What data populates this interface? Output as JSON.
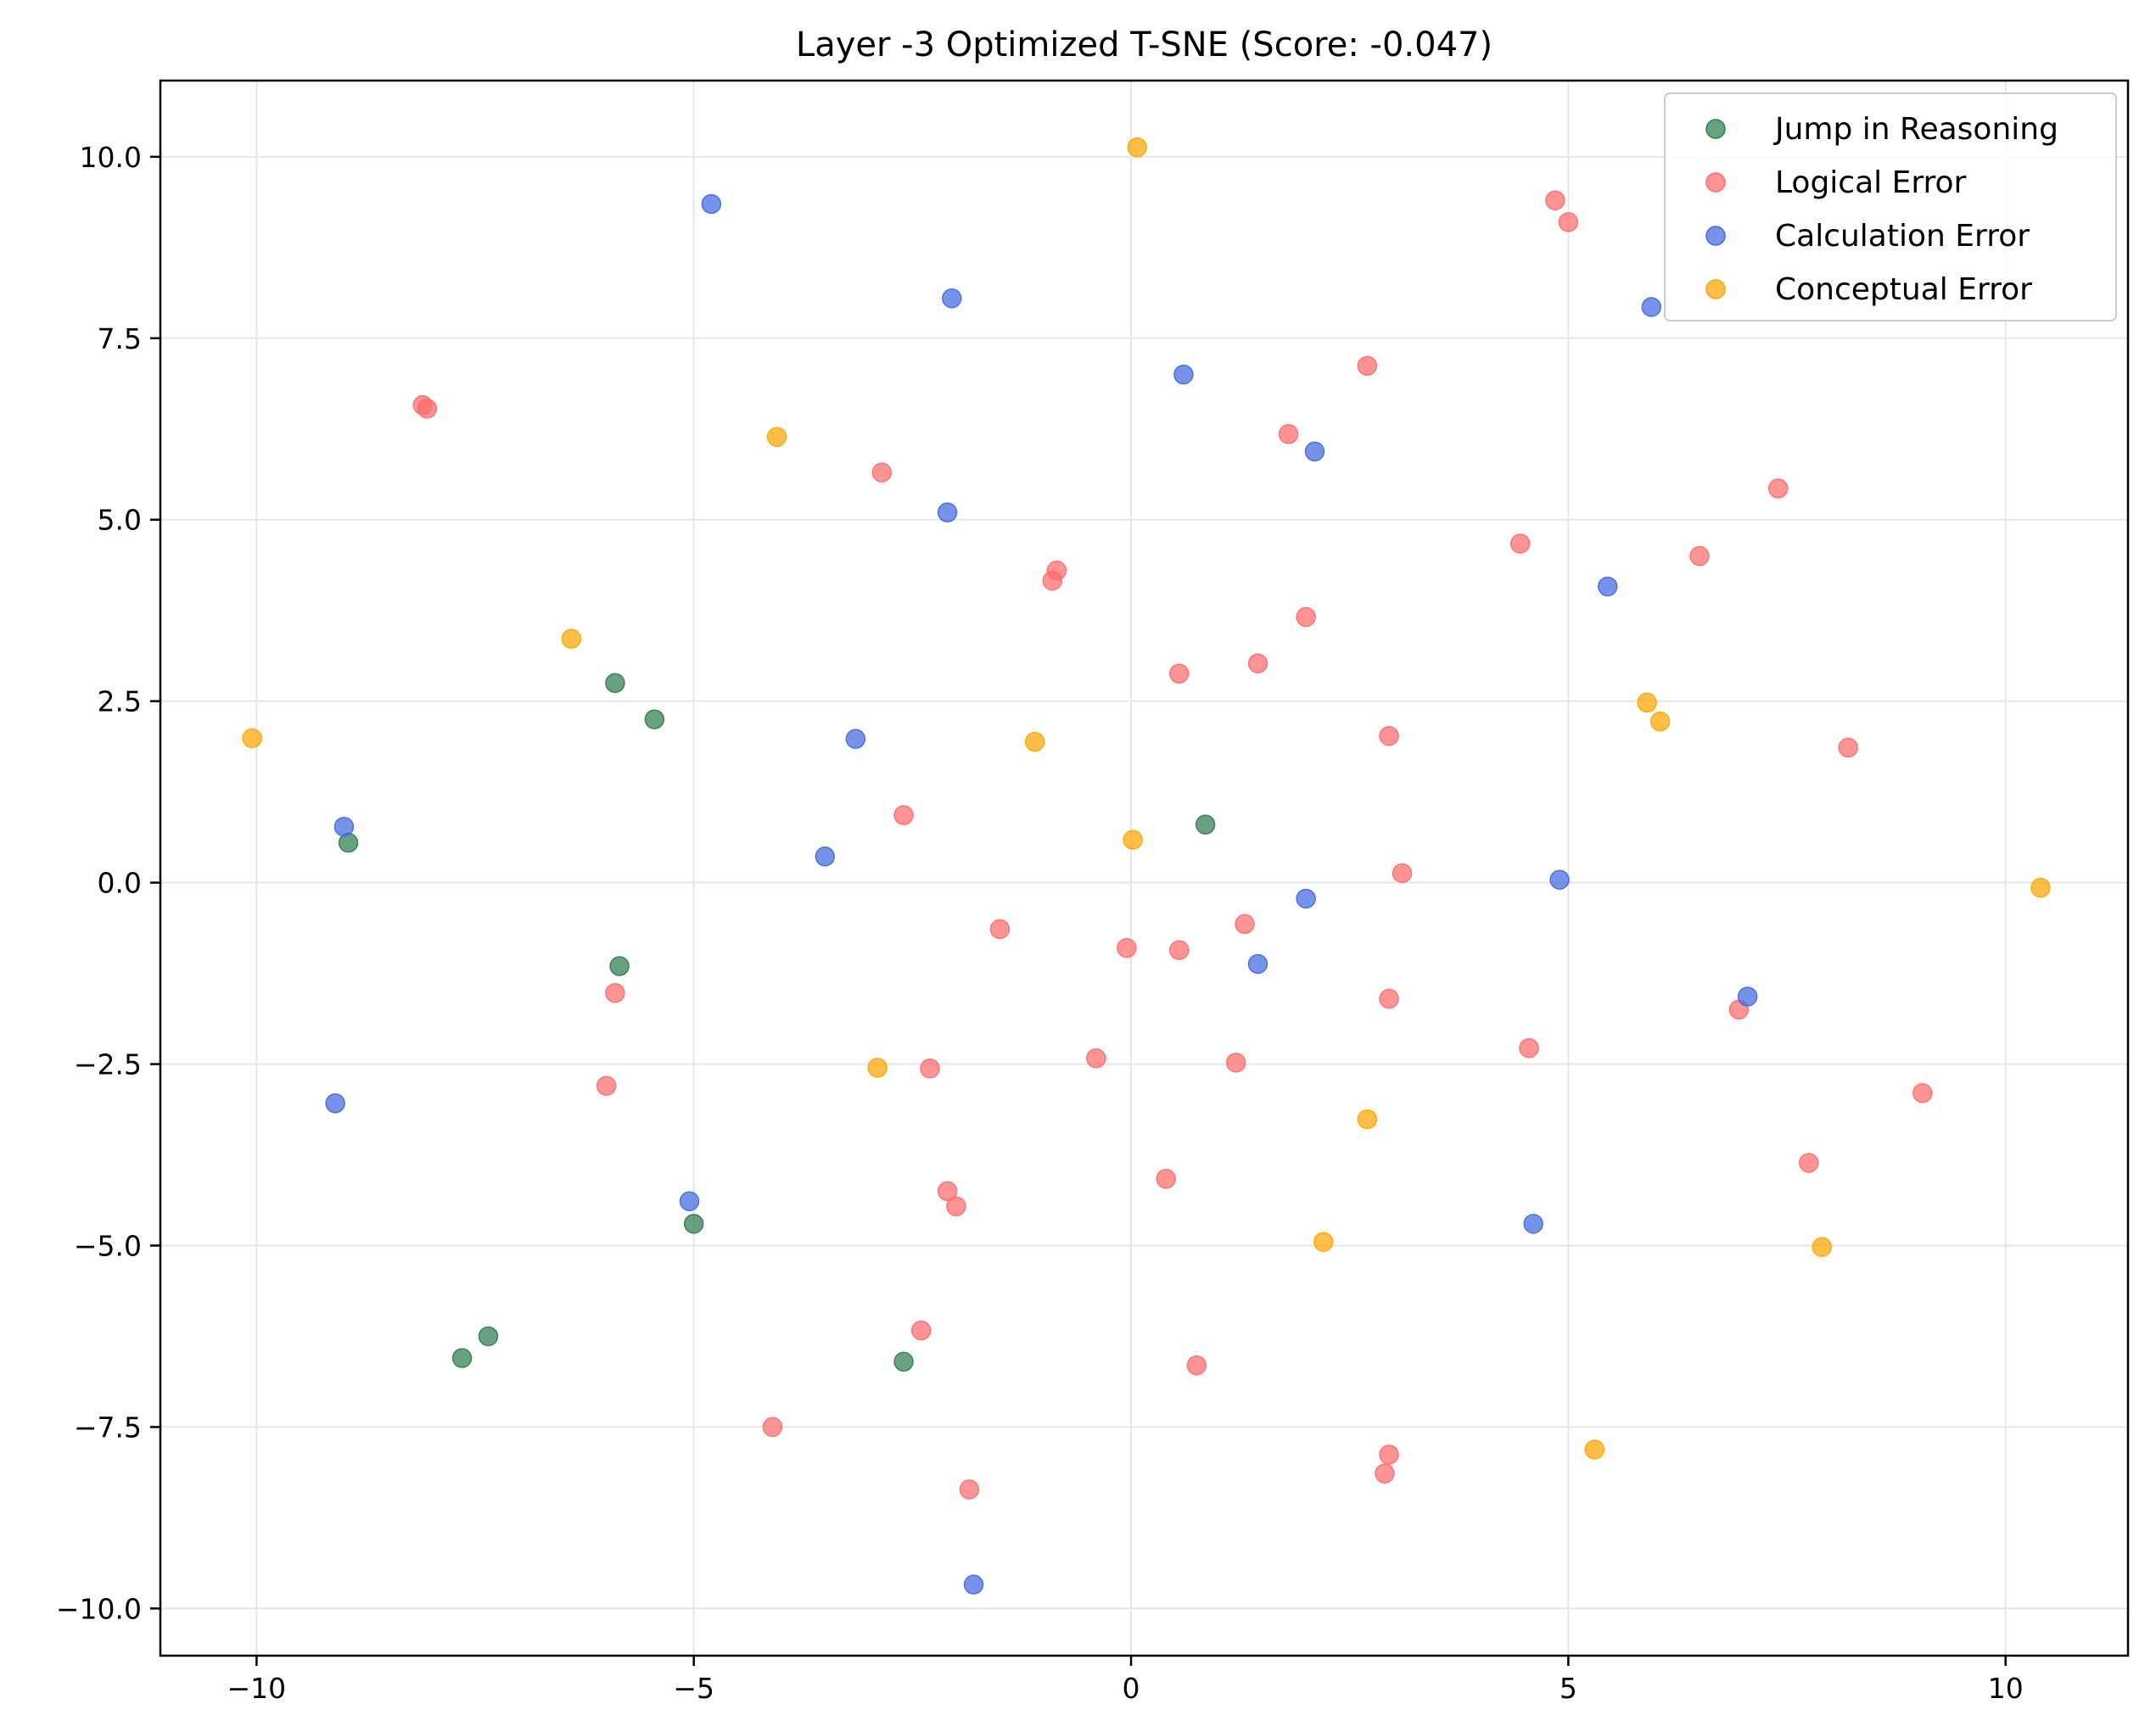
{
  "chart_data": {
    "type": "scatter",
    "title": "Layer -3 Optimized T-SNE (Score: -0.047)",
    "xlabel": "",
    "ylabel": "",
    "xlim": [
      -11.1,
      11.4
    ],
    "ylim": [
      -10.65,
      11.05
    ],
    "xticks": [
      -10,
      -5,
      0,
      5,
      10
    ],
    "xtick_labels": [
      "−10",
      "−5",
      "0",
      "5",
      "10"
    ],
    "yticks": [
      10.0,
      7.5,
      5.0,
      2.5,
      0.0,
      -2.5,
      -5.0,
      -7.5,
      -10.0
    ],
    "ytick_labels": [
      "10.0",
      "7.5",
      "5.0",
      "2.5",
      "0.0",
      "−2.5",
      "−5.0",
      "−7.5",
      "−10.0"
    ],
    "grid": true,
    "legend_position": "top-right",
    "series": [
      {
        "name": "Jump in Reasoning",
        "color": "#2e7d4f",
        "points": [
          [
            -5.9,
            2.75
          ],
          [
            -5.45,
            2.25
          ],
          [
            -8.95,
            0.55
          ],
          [
            -5.85,
            -1.15
          ],
          [
            0.85,
            0.8
          ],
          [
            -5.0,
            -4.7
          ],
          [
            -7.65,
            -6.55
          ],
          [
            -7.35,
            -6.25
          ],
          [
            -2.6,
            -6.6
          ]
        ]
      },
      {
        "name": "Logical Error",
        "color": "#ff6b6b",
        "points": [
          [
            -8.1,
            6.58
          ],
          [
            -8.05,
            6.53
          ],
          [
            4.85,
            9.4
          ],
          [
            5.0,
            9.1
          ],
          [
            2.7,
            7.12
          ],
          [
            1.8,
            6.18
          ],
          [
            -2.85,
            5.65
          ],
          [
            7.4,
            5.43
          ],
          [
            4.45,
            4.67
          ],
          [
            6.5,
            4.5
          ],
          [
            -0.85,
            4.3
          ],
          [
            -0.9,
            4.16
          ],
          [
            2.0,
            3.66
          ],
          [
            1.45,
            3.02
          ],
          [
            0.55,
            2.88
          ],
          [
            2.95,
            2.02
          ],
          [
            8.2,
            1.86
          ],
          [
            -2.6,
            0.93
          ],
          [
            3.1,
            0.13
          ],
          [
            1.3,
            -0.57
          ],
          [
            -1.5,
            -0.64
          ],
          [
            -0.05,
            -0.9
          ],
          [
            0.55,
            -0.93
          ],
          [
            -5.9,
            -1.52
          ],
          [
            2.95,
            -1.6
          ],
          [
            6.95,
            -1.75
          ],
          [
            4.55,
            -2.28
          ],
          [
            -0.4,
            -2.42
          ],
          [
            1.2,
            -2.48
          ],
          [
            -2.3,
            -2.56
          ],
          [
            -6.0,
            -2.8
          ],
          [
            9.05,
            -2.9
          ],
          [
            7.75,
            -3.86
          ],
          [
            0.4,
            -4.08
          ],
          [
            -2.1,
            -4.25
          ],
          [
            -2.0,
            -4.46
          ],
          [
            -2.4,
            -6.17
          ],
          [
            0.75,
            -6.65
          ],
          [
            -4.1,
            -7.5
          ],
          [
            2.95,
            -7.88
          ],
          [
            2.9,
            -8.14
          ],
          [
            -1.85,
            -8.36
          ]
        ]
      },
      {
        "name": "Calculation Error",
        "color": "#4169e1",
        "points": [
          [
            -4.8,
            9.35
          ],
          [
            -2.05,
            8.05
          ],
          [
            5.95,
            7.93
          ],
          [
            0.6,
            7.0
          ],
          [
            2.1,
            5.94
          ],
          [
            -2.1,
            5.1
          ],
          [
            5.45,
            4.08
          ],
          [
            -3.15,
            1.98
          ],
          [
            -9.0,
            0.77
          ],
          [
            -3.5,
            0.36
          ],
          [
            4.9,
            0.04
          ],
          [
            2.0,
            -0.22
          ],
          [
            1.45,
            -1.12
          ],
          [
            7.05,
            -1.57
          ],
          [
            -9.1,
            -3.04
          ],
          [
            -5.05,
            -4.39
          ],
          [
            4.6,
            -4.7
          ],
          [
            -1.8,
            -9.67
          ]
        ]
      },
      {
        "name": "Conceptual Error",
        "color": "#ffa500",
        "points": [
          [
            0.07,
            10.13
          ],
          [
            -4.05,
            6.14
          ],
          [
            -6.4,
            3.36
          ],
          [
            -10.05,
            1.99
          ],
          [
            -1.1,
            1.94
          ],
          [
            5.9,
            2.48
          ],
          [
            6.05,
            2.22
          ],
          [
            0.02,
            0.59
          ],
          [
            10.4,
            -0.07
          ],
          [
            -2.9,
            -2.55
          ],
          [
            2.7,
            -3.26
          ],
          [
            2.2,
            -4.95
          ],
          [
            7.9,
            -5.02
          ],
          [
            5.3,
            -7.81
          ]
        ]
      }
    ]
  }
}
